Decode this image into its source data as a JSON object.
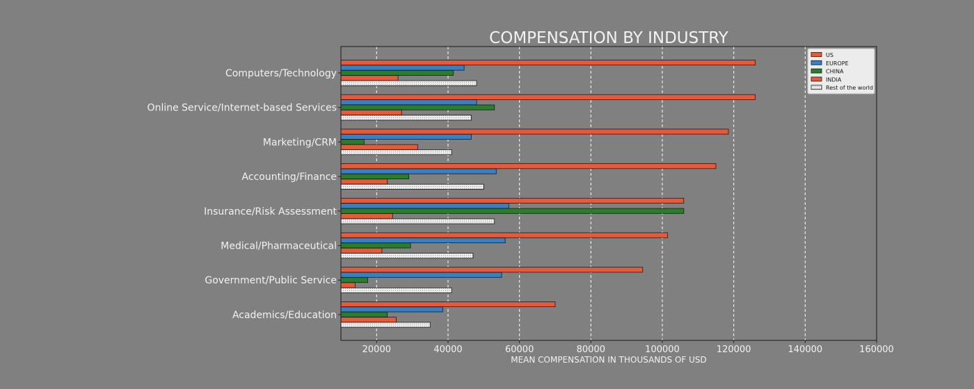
{
  "chart_data": {
    "type": "bar",
    "orientation": "horizontal",
    "title": "COMPENSATION BY INDUSTRY",
    "xlabel": "MEAN COMPENSATION IN THOUSANDS OF USD",
    "ylabel": "",
    "xlim": [
      10000,
      160000
    ],
    "xticks": [
      20000,
      40000,
      60000,
      80000,
      100000,
      120000,
      140000,
      160000
    ],
    "xtick_labels": [
      "20000",
      "40000",
      "60000",
      "80000",
      "100000",
      "120000",
      "140000",
      "160000"
    ],
    "grid": "vertical dashed",
    "legend_position": "top-right",
    "categories": [
      "Computers/Technology",
      "Online Service/Internet-based Services",
      "Marketing/CRM",
      "Accounting/Finance",
      "Insurance/Risk Assessment",
      "Medical/Pharmaceutical",
      "Government/Public Service",
      "Academics/Education"
    ],
    "series": [
      {
        "name": "US",
        "color": "#e45a3b",
        "values": [
          126000,
          126000,
          118500,
          115000,
          106000,
          101500,
          94500,
          70000
        ]
      },
      {
        "name": "EUROPE",
        "color": "#3a7fc1",
        "values": [
          44500,
          48000,
          46500,
          53500,
          57000,
          56000,
          55000,
          38500
        ]
      },
      {
        "name": "CHINA",
        "color": "#2a7d2a",
        "values": [
          41500,
          53000,
          16500,
          29000,
          106000,
          29500,
          17500,
          23000
        ]
      },
      {
        "name": "INDIA",
        "color": "#e45a3b",
        "values": [
          26000,
          27000,
          31500,
          23000,
          24500,
          21500,
          14000,
          25500
        ]
      },
      {
        "name": "Rest of the world",
        "color": "#e8e8e8",
        "values": [
          48000,
          46500,
          41000,
          50000,
          53000,
          47000,
          41000,
          35000
        ]
      }
    ]
  }
}
